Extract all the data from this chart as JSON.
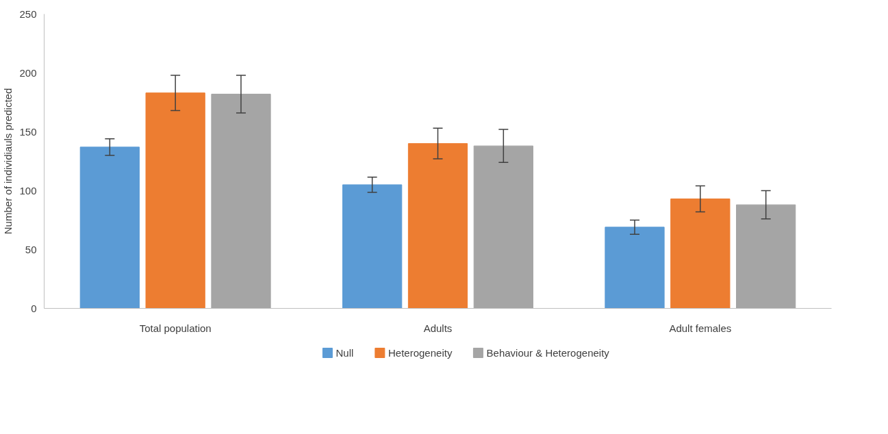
{
  "chart_data": {
    "type": "bar",
    "ylabel": "Number of individiauls predicted",
    "categories": [
      "Total population",
      "Adults",
      "Adult females"
    ],
    "series": [
      {
        "name": "Null",
        "color": "#5b9bd5",
        "values": [
          137,
          105,
          69
        ],
        "errors": [
          7,
          6.5,
          6
        ]
      },
      {
        "name": "Heterogeneity",
        "color": "#ed7d31",
        "values": [
          183,
          140,
          93
        ],
        "errors": [
          15,
          13,
          11
        ]
      },
      {
        "name": "Behaviour & Heterogeneity",
        "color": "#a5a5a5",
        "values": [
          182,
          138,
          88
        ],
        "errors": [
          16,
          14,
          12
        ]
      }
    ],
    "ylim": [
      0,
      250
    ],
    "yticks": [
      0,
      50,
      100,
      150,
      200,
      250
    ],
    "grid": false,
    "legend": "bottom"
  }
}
